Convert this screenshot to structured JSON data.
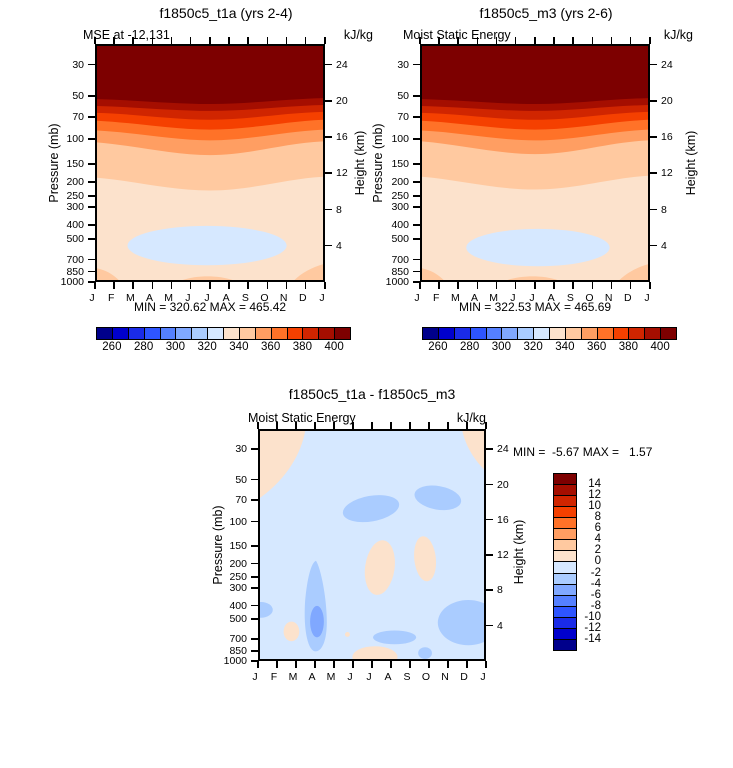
{
  "palette16": [
    "#00008B",
    "#0000CD",
    "#1A2BE8",
    "#2E55FF",
    "#5580FF",
    "#80A8FF",
    "#AACCFF",
    "#D6E8FF",
    "#FCE2CC",
    "#FFC9A0",
    "#FF9E62",
    "#FF7228",
    "#F54000",
    "#D02500",
    "#A50E00",
    "#7D0000"
  ],
  "axis": {
    "pressure_label": "Pressure (mb)",
    "height_label": "Height (km)",
    "pressure_ticks": [
      "30",
      "50",
      "70",
      "100",
      "150",
      "200",
      "250",
      "300",
      "400",
      "500",
      "700",
      "850",
      "1000"
    ],
    "height_ticks": [
      "24",
      "20",
      "16",
      "12",
      "8",
      "4"
    ],
    "month_ticks": [
      "J",
      "F",
      "M",
      "A",
      "M",
      "J",
      "J",
      "A",
      "S",
      "O",
      "N",
      "D",
      "J"
    ]
  },
  "colorbar_top": {
    "labels": [
      "260",
      "280",
      "300",
      "320",
      "340",
      "360",
      "380",
      "400"
    ]
  },
  "colorbar_diff": {
    "labels": [
      "14",
      "12",
      "10",
      "8",
      "6",
      "4",
      "2",
      "0",
      "-2",
      "-4",
      "-6",
      "-8",
      "-10",
      "-12",
      "-14"
    ]
  },
  "panel_left": {
    "title": "f1850c5_t1a (yrs 2-4)",
    "subtitle_left": "MSE at -12,131",
    "units": "kJ/kg",
    "minmax": "MIN = 320.62 MAX = 465.42"
  },
  "panel_right": {
    "title": "f1850c5_m3 (yrs 2-6)",
    "subtitle_left": "Moist Static Energy",
    "units": "kJ/kg",
    "minmax": "MIN = 322.53 MAX = 465.69"
  },
  "panel_diff": {
    "title": "f1850c5_t1a - f1850c5_m3",
    "subtitle_left": "Moist Static Energy",
    "units": "kJ/kg",
    "minmax": "MIN =  -5.67 MAX =   1.57"
  },
  "chart_data": [
    {
      "type": "contour",
      "panel": "top-left",
      "title": "f1850c5_t1a (yrs 2-4)",
      "variable": "MSE at -12,131",
      "units": "kJ/kg",
      "x_axis": {
        "label": "month",
        "ticks": [
          "J",
          "F",
          "M",
          "A",
          "M",
          "J",
          "J",
          "A",
          "S",
          "O",
          "N",
          "D",
          "J"
        ]
      },
      "y_axis_left": {
        "label": "Pressure (mb)",
        "scale": "log",
        "ticks": [
          30,
          50,
          70,
          100,
          150,
          200,
          250,
          300,
          400,
          500,
          700,
          850,
          1000
        ]
      },
      "y_axis_right": {
        "label": "Height (km)",
        "ticks": [
          24,
          20,
          16,
          12,
          8,
          4
        ]
      },
      "min": 320.62,
      "max": 465.42,
      "contour_interval": 10,
      "colorbar_labels": [
        260,
        280,
        300,
        320,
        340,
        360,
        380,
        400
      ],
      "approx_level_pressure_mb": {
        "400": 52,
        "390": 56,
        "380": 62,
        "370": 71,
        "360": 83,
        "350": 100,
        "340": 195
      },
      "low_cell": "320-330 kJ/kg closed region ~450-850 mb spanning Feb-Dec, deepest mid-year",
      "notes": "MSE > 400 kJ/kg above ~52 mb; broad 330-340 kJ/kg layer from ~300 mb to the surface"
    },
    {
      "type": "contour",
      "panel": "top-right",
      "title": "f1850c5_m3 (yrs 2-6)",
      "variable": "Moist Static Energy",
      "units": "kJ/kg",
      "x_axis": {
        "label": "month",
        "ticks": [
          "J",
          "F",
          "M",
          "A",
          "M",
          "J",
          "J",
          "A",
          "S",
          "O",
          "N",
          "D",
          "J"
        ]
      },
      "y_axis_left": {
        "label": "Pressure (mb)",
        "scale": "log",
        "ticks": [
          30,
          50,
          70,
          100,
          150,
          200,
          250,
          300,
          400,
          500,
          700,
          850,
          1000
        ]
      },
      "y_axis_right": {
        "label": "Height (km)",
        "ticks": [
          24,
          20,
          16,
          12,
          8,
          4
        ]
      },
      "min": 322.53,
      "max": 465.69,
      "contour_interval": 10,
      "colorbar_labels": [
        260,
        280,
        300,
        320,
        340,
        360,
        380,
        400
      ],
      "approx_level_pressure_mb": {
        "400": 52,
        "390": 56,
        "380": 62,
        "370": 71,
        "360": 83,
        "350": 100,
        "340": 195
      },
      "low_cell": "320-330 kJ/kg closed region ~500-850 mb spanning Mar-Nov",
      "notes": "structure nearly identical to f1850c5_t1a"
    },
    {
      "type": "contour",
      "panel": "bottom",
      "title": "f1850c5_t1a - f1850c5_m3",
      "variable": "Moist Static Energy",
      "units": "kJ/kg",
      "x_axis": {
        "label": "month",
        "ticks": [
          "J",
          "F",
          "M",
          "A",
          "M",
          "J",
          "J",
          "A",
          "S",
          "O",
          "N",
          "D",
          "J"
        ]
      },
      "y_axis_left": {
        "label": "Pressure (mb)",
        "scale": "log",
        "ticks": [
          30,
          50,
          70,
          100,
          150,
          200,
          250,
          300,
          400,
          500,
          700,
          850,
          1000
        ]
      },
      "y_axis_right": {
        "label": "Height (km)",
        "ticks": [
          24,
          20,
          16,
          12,
          8,
          4
        ]
      },
      "min": -5.67,
      "max": 1.57,
      "contour_interval": 2,
      "colorbar_labels": [
        14,
        12,
        10,
        8,
        6,
        4,
        2,
        0,
        -2,
        -4,
        -6,
        -8,
        -10,
        -12,
        -14
      ],
      "features": [
        "background mostly -2 to 0 kJ/kg",
        "0 to +2: upper-left corner (Jan-Mar above ~60 mb), upper-right corner (Dec), 150-300 mb in Jul-Aug and in Oct, ~700 mb in Mar, near-surface Jul-Aug",
        "-4 to -2: ~100 mb Jun-Aug, 70-100 mb Oct-Nov, Apr column 250 mb to surface, 500-700 mb Nov-Jan, ~500 mb at Jan edge, 700-1000 mb Aug-Oct",
        "-6 to -4: core near 500-700 mb in Apr"
      ]
    }
  ]
}
